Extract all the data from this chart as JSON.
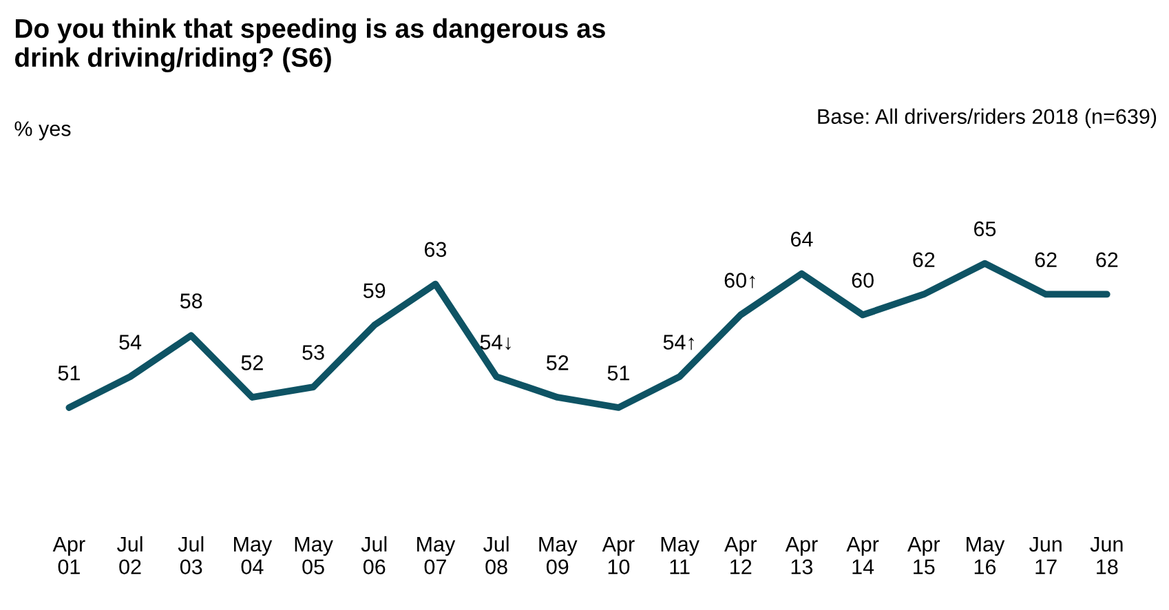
{
  "chart_data": {
    "type": "line",
    "title": "Do you think that speeding is as dangerous as\ndrink driving/riding? (S6)",
    "annotations": [
      "% yes",
      "Base: All drivers/riders 2018 (n=639)"
    ],
    "categories": [
      "Apr\n01",
      "Jul\n02",
      "Jul\n03",
      "May\n04",
      "May\n05",
      "Jul\n06",
      "May\n07",
      "Jul\n08",
      "May\n09",
      "Apr\n10",
      "May\n11",
      "Apr\n12",
      "Apr\n13",
      "Apr\n14",
      "Apr\n15",
      "May\n16",
      "Jun\n17",
      "Jun\n18"
    ],
    "series": [
      {
        "color": "#0e5364",
        "values": [
          51,
          54,
          58,
          52,
          53,
          59,
          63,
          54,
          52,
          51,
          54,
          60,
          64,
          60,
          62,
          65,
          62,
          62
        ],
        "value_labels": [
          "51",
          "54",
          "58",
          "52",
          "53",
          "59",
          "63",
          "54↓",
          "52",
          "51",
          "54↑",
          "60↑",
          "64",
          "60",
          "62",
          "65",
          "62",
          "62"
        ]
      }
    ],
    "grid": false,
    "legend": false,
    "marker": "none",
    "line_style": "solid"
  }
}
